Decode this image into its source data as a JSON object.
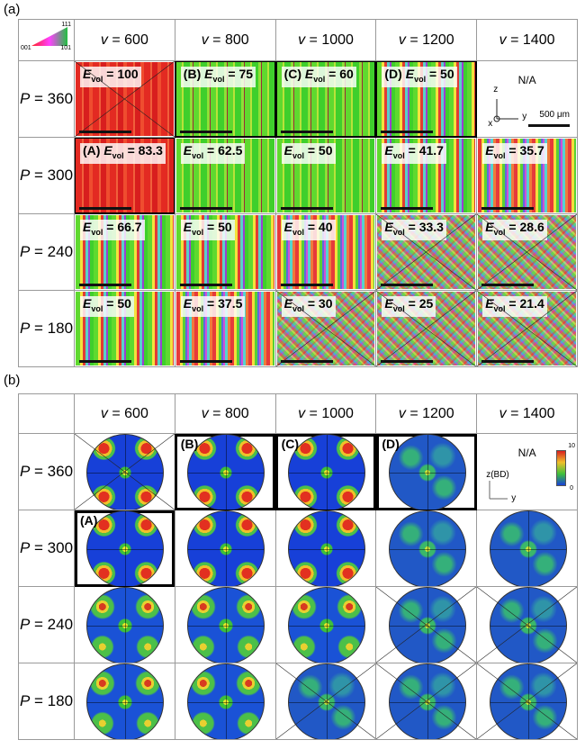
{
  "panel_a_label": "(a)",
  "panel_b_label": "(b)",
  "columns": [
    "600",
    "800",
    "1000",
    "1200",
    "1400"
  ],
  "column_prefix": "v = ",
  "rows": [
    "360",
    "300",
    "240",
    "180"
  ],
  "row_prefix": "P = ",
  "ipf_key": {
    "top": "111",
    "left": "001",
    "right": "101"
  },
  "panel_a": {
    "na_text": "N/A",
    "axis": {
      "z": "z",
      "x": "x",
      "y": "y"
    },
    "scale_bar": "500 μm",
    "evol_symbol": "E",
    "evol_subscript": "vol",
    "cells": [
      [
        {
          "tag": "",
          "evol": "100",
          "texture": "red",
          "crossed": true,
          "bold": false
        },
        {
          "tag": "(B)",
          "evol": "75",
          "texture": "green",
          "crossed": false,
          "bold": true
        },
        {
          "tag": "(C)",
          "evol": "60",
          "texture": "green",
          "crossed": false,
          "bold": true
        },
        {
          "tag": "(D)",
          "evol": "50",
          "texture": "mixA",
          "crossed": false,
          "bold": true
        },
        null
      ],
      [
        {
          "tag": "(A)",
          "evol": "83.3",
          "texture": "red",
          "crossed": false,
          "bold": true
        },
        {
          "tag": "",
          "evol": "62.5",
          "texture": "green",
          "crossed": false,
          "bold": false
        },
        {
          "tag": "",
          "evol": "50",
          "texture": "green",
          "crossed": false,
          "bold": false
        },
        {
          "tag": "",
          "evol": "41.7",
          "texture": "mixA",
          "crossed": false,
          "bold": false
        },
        {
          "tag": "",
          "evol": "35.7",
          "texture": "mixB",
          "crossed": false,
          "bold": false
        }
      ],
      [
        {
          "tag": "",
          "evol": "66.7",
          "texture": "mixA",
          "crossed": false,
          "bold": false
        },
        {
          "tag": "",
          "evol": "50",
          "texture": "mixA",
          "crossed": false,
          "bold": false
        },
        {
          "tag": "",
          "evol": "40",
          "texture": "mixB",
          "crossed": false,
          "bold": false
        },
        {
          "tag": "",
          "evol": "33.3",
          "texture": "fine",
          "crossed": true,
          "bold": false
        },
        {
          "tag": "",
          "evol": "28.6",
          "texture": "fine",
          "crossed": true,
          "bold": false
        }
      ],
      [
        {
          "tag": "",
          "evol": "50",
          "texture": "mixA",
          "crossed": false,
          "bold": false
        },
        {
          "tag": "",
          "evol": "37.5",
          "texture": "mixB",
          "crossed": false,
          "bold": false
        },
        {
          "tag": "",
          "evol": "30",
          "texture": "fine",
          "crossed": true,
          "bold": false
        },
        {
          "tag": "",
          "evol": "25",
          "texture": "fine",
          "crossed": true,
          "bold": false
        },
        {
          "tag": "",
          "evol": "21.4",
          "texture": "fine",
          "crossed": true,
          "bold": false
        }
      ]
    ]
  },
  "panel_b": {
    "na_text": "N/A",
    "axis": {
      "z": "z(BD)",
      "y": "y"
    },
    "colorbar": {
      "max": "10",
      "min": "0"
    },
    "cells": [
      [
        {
          "tag": "",
          "intensity": "strong",
          "crossed": true,
          "bold": false
        },
        {
          "tag": "(B)",
          "intensity": "strong",
          "crossed": false,
          "bold": true
        },
        {
          "tag": "(C)",
          "intensity": "strong",
          "crossed": false,
          "bold": true
        },
        {
          "tag": "(D)",
          "intensity": "weak",
          "crossed": false,
          "bold": true
        },
        null
      ],
      [
        {
          "tag": "(A)",
          "intensity": "strong",
          "crossed": false,
          "bold": true
        },
        {
          "tag": "",
          "intensity": "strong",
          "crossed": false,
          "bold": false
        },
        {
          "tag": "",
          "intensity": "strong",
          "crossed": false,
          "bold": false
        },
        {
          "tag": "",
          "intensity": "weak",
          "crossed": false,
          "bold": false
        },
        {
          "tag": "",
          "intensity": "weak",
          "crossed": false,
          "bold": false
        }
      ],
      [
        {
          "tag": "",
          "intensity": "medium",
          "crossed": false,
          "bold": false
        },
        {
          "tag": "",
          "intensity": "medium",
          "crossed": false,
          "bold": false
        },
        {
          "tag": "",
          "intensity": "medium",
          "crossed": false,
          "bold": false
        },
        {
          "tag": "",
          "intensity": "weak",
          "crossed": true,
          "bold": false
        },
        {
          "tag": "",
          "intensity": "weak",
          "crossed": true,
          "bold": false
        }
      ],
      [
        {
          "tag": "",
          "intensity": "medium",
          "crossed": false,
          "bold": false
        },
        {
          "tag": "",
          "intensity": "medium",
          "crossed": false,
          "bold": false
        },
        {
          "tag": "",
          "intensity": "weak",
          "crossed": true,
          "bold": false
        },
        {
          "tag": "",
          "intensity": "weak",
          "crossed": true,
          "bold": false
        },
        {
          "tag": "",
          "intensity": "weak",
          "crossed": true,
          "bold": false
        }
      ]
    ]
  }
}
